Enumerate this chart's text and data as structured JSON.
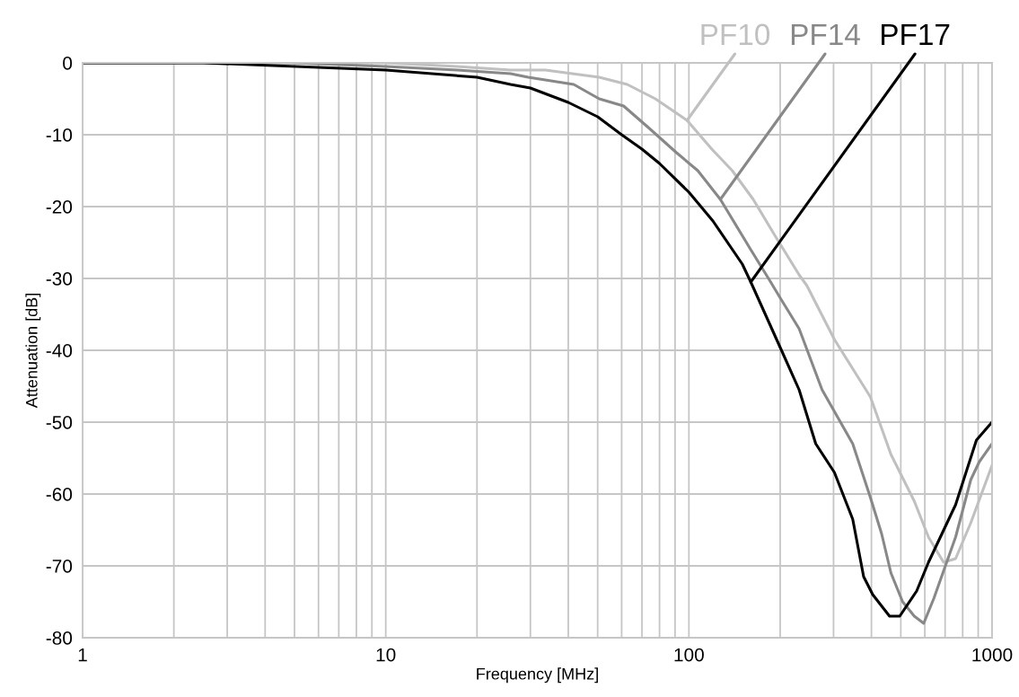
{
  "chart_data": {
    "type": "line",
    "xlabel": "Frequency [MHz]",
    "ylabel": "Attenuation [dB]",
    "log": "x",
    "xlim": [
      1,
      1000
    ],
    "ylim": [
      -80,
      0
    ],
    "xticks": [
      1,
      {
        "value": 2,
        "label": null
      },
      {
        "value": 3,
        "label": null
      },
      {
        "value": 4,
        "label": null
      },
      {
        "value": 5,
        "label": null
      },
      {
        "value": 6,
        "label": null
      },
      {
        "value": 7,
        "label": null
      },
      {
        "value": 8,
        "label": null
      },
      {
        "value": 9,
        "label": null
      },
      10,
      {
        "value": 20,
        "label": null
      },
      {
        "value": 30,
        "label": null
      },
      {
        "value": 40,
        "label": null
      },
      {
        "value": 50,
        "label": null
      },
      {
        "value": 60,
        "label": null
      },
      {
        "value": 70,
        "label": null
      },
      {
        "value": 80,
        "label": null
      },
      {
        "value": 90,
        "label": null
      },
      100,
      {
        "value": 200,
        "label": null
      },
      {
        "value": 300,
        "label": null
      },
      {
        "value": 400,
        "label": null
      },
      {
        "value": 500,
        "label": null
      },
      {
        "value": 600,
        "label": null
      },
      {
        "value": 700,
        "label": null
      },
      {
        "value": 800,
        "label": null
      },
      {
        "value": 900,
        "label": null
      },
      1000
    ],
    "yticks": [
      0,
      -10,
      -20,
      -30,
      -40,
      -50,
      -60,
      -70,
      -80
    ],
    "grid": true,
    "marker": "none",
    "line_style": "solid",
    "series": [
      {
        "color": "#c0c0c0",
        "x": [
          1,
          5,
          10,
          17.2,
          25.8,
          33.6,
          50.6,
          62.6,
          77.5,
          98.6,
          119,
          139,
          163,
          192,
          231,
          245,
          302,
          397,
          464,
          554,
          617,
          692,
          758,
          851,
          1000
        ],
        "values": [
          0,
          0,
          0,
          -0.5,
          -1,
          -1,
          -2,
          -3,
          -5,
          -8,
          -12,
          -15,
          -19,
          -24,
          -29.5,
          -31,
          -38.5,
          -46.5,
          -54.5,
          -61,
          -66,
          -69.5,
          -69,
          -64,
          -56
        ]
      },
      {
        "color": "#888888",
        "x": [
          1,
          5,
          10,
          17.2,
          25.8,
          29.5,
          41.7,
          50.6,
          60.9,
          73.5,
          91,
          107,
          127,
          160,
          183,
          202,
          231,
          275,
          347,
          397,
          432,
          464,
          507,
          554,
          595,
          643,
          758,
          851,
          908,
          1000
        ],
        "values": [
          0,
          0,
          -0.5,
          -1,
          -1.5,
          -2,
          -3,
          -5,
          -6,
          -9,
          -12.5,
          -15,
          -19,
          -26,
          -30,
          -33,
          -37,
          -45.5,
          -53,
          -60.5,
          -65.5,
          -71,
          -75,
          -77,
          -78,
          -74.5,
          -66,
          -58,
          -55.5,
          -53
        ]
      },
      {
        "color": "#000000",
        "x": [
          1,
          2.5,
          10,
          20,
          25.8,
          30,
          40,
          50,
          60,
          70,
          80,
          100,
          120,
          150,
          160,
          202,
          231,
          262,
          302,
          347,
          377,
          404,
          459,
          496,
          564,
          617,
          758,
          888,
          1000
        ],
        "values": [
          0,
          0,
          -1,
          -2,
          -3,
          -3.5,
          -5.5,
          -7.5,
          -10,
          -12,
          -14,
          -18,
          -22,
          -28,
          -30.5,
          -40,
          -45.5,
          -53,
          -57,
          -63.5,
          -71.5,
          -74,
          -77,
          -77,
          -73.5,
          -69.5,
          -61.5,
          -52.5,
          -50
        ]
      }
    ],
    "annotations": [
      {
        "text": "PF10",
        "x": 98.6,
        "y": -8
      },
      {
        "text": "PF14",
        "x": 127,
        "y": -19
      },
      {
        "text": "PF17",
        "x": 160,
        "y": -30.5
      }
    ]
  }
}
